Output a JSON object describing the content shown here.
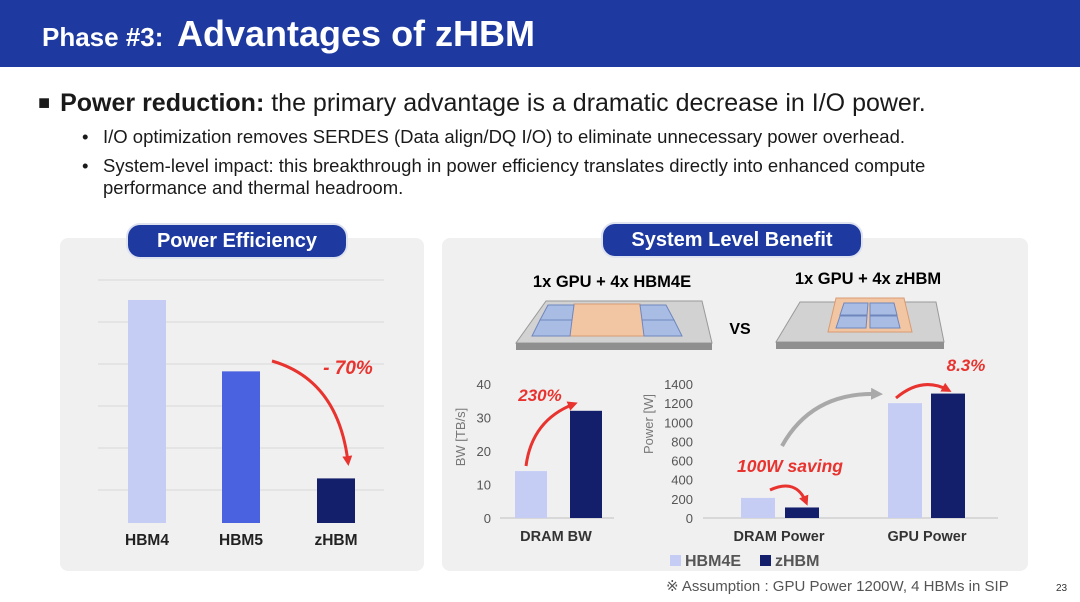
{
  "header": {
    "prefix": "Phase #3:",
    "title": "Advantages of zHBM"
  },
  "main_bullet": {
    "marker": "■",
    "bold": "Power reduction:",
    "text": "the primary advantage is a dramatic decrease in I/O power."
  },
  "sub_bullets": [
    {
      "dot": "•",
      "text": "I/O optimization removes SERDES (Data align/DQ I/O) to eliminate unnecessary power overhead."
    },
    {
      "dot": "•",
      "text": "System-level impact: this breakthrough in power efficiency translates directly into enhanced compute performance and thermal headroom."
    }
  ],
  "left_panel": {
    "title": "Power Efficiency"
  },
  "right_panel": {
    "title": "System Level Benefit",
    "config_left": "1x GPU + 4x HBM4E",
    "config_right": "1x GPU + 4x zHBM",
    "vs": "VS"
  },
  "chart_data": [
    {
      "type": "bar",
      "title": "Power Efficiency",
      "categories": [
        "HBM4",
        "HBM5",
        "zHBM"
      ],
      "values": [
        1.0,
        0.68,
        0.2
      ],
      "colors": [
        "#c5cdf5",
        "#4a62e0",
        "#141f6b"
      ],
      "annotation": "- 70%",
      "grid": true
    },
    {
      "type": "bar",
      "categories": [
        "DRAM BW"
      ],
      "series": [
        {
          "name": "HBM4E",
          "values": [
            14
          ]
        },
        {
          "name": "zHBM",
          "values": [
            32
          ]
        }
      ],
      "ylabel": "BW [TB/s]",
      "ylim": [
        0,
        40
      ],
      "yticks": [
        "0",
        "10",
        "20",
        "30",
        "40"
      ],
      "annotation": "230%"
    },
    {
      "type": "bar",
      "categories": [
        "DRAM Power",
        "GPU Power"
      ],
      "series": [
        {
          "name": "HBM4E",
          "values": [
            210,
            1200
          ]
        },
        {
          "name": "zHBM",
          "values": [
            110,
            1300
          ]
        }
      ],
      "ylabel": "Power [W]",
      "ylim": [
        0,
        1400
      ],
      "yticks": [
        "0",
        "200",
        "400",
        "600",
        "800",
        "1000",
        "1200",
        "1400"
      ],
      "annotations": [
        "100W saving",
        "8.3%"
      ],
      "legend": "bottom",
      "series_colors": [
        "#c5cdf5",
        "#141f6b"
      ]
    }
  ],
  "footnote": "※ Assumption : GPU Power 1200W, 4 HBMs in SIP",
  "page_number": "23"
}
